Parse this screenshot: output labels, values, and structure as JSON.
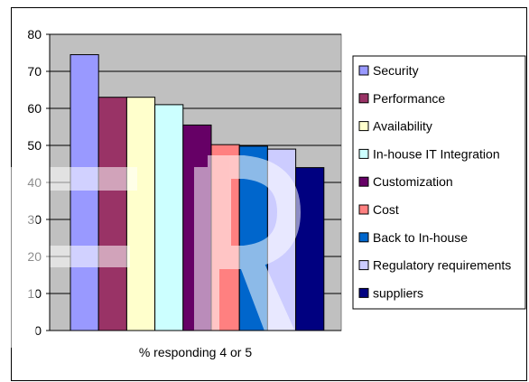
{
  "chart_data": {
    "type": "bar",
    "categories": [
      "% responding 4 or 5"
    ],
    "xlabel": "% responding 4 or 5",
    "ylim": [
      0,
      80
    ],
    "yticks": [
      0,
      10,
      20,
      30,
      40,
      50,
      60,
      70,
      80
    ],
    "grid": true,
    "legend": "right",
    "watermark": "IR",
    "series": [
      {
        "name": "Security",
        "values": [
          74.5
        ],
        "color": "#9999ff"
      },
      {
        "name": "Performance",
        "values": [
          63
        ],
        "color": "#993366"
      },
      {
        "name": "Availability",
        "values": [
          63
        ],
        "color": "#ffffcc"
      },
      {
        "name": "In-house IT Integration",
        "values": [
          61
        ],
        "color": "#ccffff"
      },
      {
        "name": "Customization",
        "values": [
          55.5
        ],
        "color": "#660066"
      },
      {
        "name": "Cost",
        "values": [
          50.2
        ],
        "color": "#ff8080"
      },
      {
        "name": "Back to In-house",
        "values": [
          49.8
        ],
        "color": "#0066cc"
      },
      {
        "name": "Regulatory requirements",
        "values": [
          49
        ],
        "color": "#ccccff"
      },
      {
        "name": "suppliers",
        "values": [
          44
        ],
        "color": "#000080"
      }
    ]
  }
}
